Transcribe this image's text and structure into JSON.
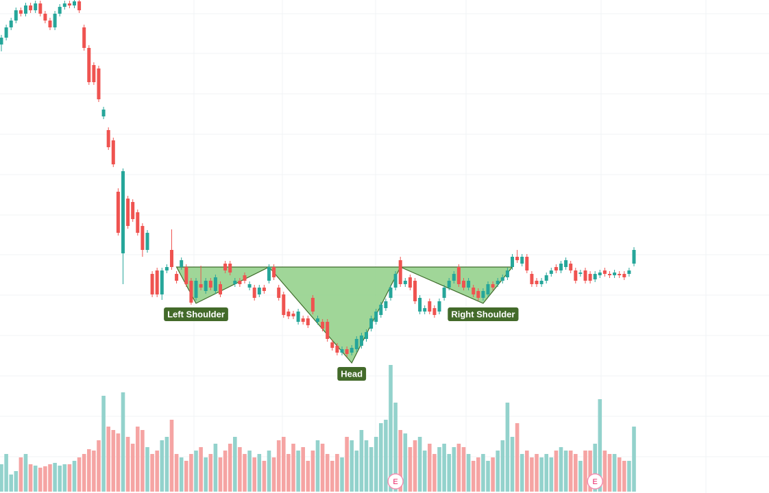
{
  "chart_data": {
    "type": "candlestick",
    "up_color": "#26a69a",
    "down_color": "#ef5350",
    "volume_up_color": "#93d2cc",
    "volume_down_color": "#f5a4a3",
    "ylim": [
      0,
      720
    ],
    "open": [
      655,
      665,
      680,
      690,
      705,
      700,
      712,
      705,
      715,
      700,
      690,
      680,
      700,
      710,
      715,
      712,
      718,
      680,
      650,
      625,
      620,
      550,
      530,
      515,
      440,
      350,
      430,
      425,
      410,
      390,
      355,
      320,
      325,
      290,
      325,
      355,
      320,
      330,
      330,
      310,
      285,
      305,
      295,
      310,
      295,
      305,
      335,
      335,
      305,
      310,
      318,
      300,
      300,
      290,
      300,
      310,
      330,
      300,
      290,
      265,
      262,
      250,
      255,
      255,
      285,
      250,
      250,
      250,
      220,
      215,
      205,
      210,
      205,
      210,
      215,
      225,
      240,
      250,
      260,
      270,
      285,
      300,
      340,
      305,
      315,
      310,
      265,
      265,
      280,
      270,
      265,
      285,
      300,
      310,
      330,
      310,
      300,
      300,
      295,
      285,
      290,
      305,
      305,
      310,
      315,
      330,
      345,
      335,
      345,
      320,
      310,
      305,
      310,
      320,
      330,
      325,
      330,
      335,
      325,
      320,
      325,
      320,
      312,
      318,
      325,
      320,
      318,
      320,
      320,
      320,
      335
    ],
    "high": [
      669,
      684,
      694,
      709,
      709,
      716,
      716,
      719,
      719,
      704,
      694,
      704,
      714,
      719,
      719,
      720,
      720,
      684,
      654,
      629,
      624,
      564,
      534,
      519,
      445,
      474,
      434,
      429,
      414,
      394,
      384,
      324,
      329,
      329,
      334,
      385,
      324,
      344,
      334,
      314,
      314,
      332,
      314,
      314,
      319,
      309,
      339,
      339,
      314,
      314,
      322,
      309,
      304,
      304,
      304,
      334,
      334,
      304,
      294,
      269,
      266,
      269,
      259,
      259,
      289,
      259,
      254,
      254,
      224,
      219,
      214,
      214,
      216,
      229,
      234,
      239,
      259,
      269,
      279,
      284,
      304,
      324,
      345,
      314,
      319,
      314,
      289,
      274,
      284,
      274,
      284,
      304,
      314,
      324,
      334,
      314,
      314,
      304,
      299,
      299,
      309,
      309,
      314,
      319,
      329,
      349,
      355,
      349,
      349,
      324,
      314,
      314,
      322,
      329,
      334,
      339,
      344,
      339,
      329,
      326,
      329,
      324,
      324,
      326,
      329,
      324,
      326,
      324,
      324,
      329,
      359
    ],
    "low": [
      645,
      661,
      676,
      686,
      696,
      696,
      701,
      701,
      696,
      686,
      676,
      676,
      696,
      706,
      708,
      708,
      701,
      646,
      596,
      596,
      571,
      546,
      501,
      476,
      376,
      305,
      386,
      396,
      376,
      345,
      351,
      286,
      286,
      282,
      321,
      326,
      306,
      326,
      301,
      275,
      281,
      296,
      291,
      296,
      291,
      286,
      321,
      318,
      301,
      301,
      306,
      296,
      281,
      286,
      291,
      306,
      311,
      281,
      256,
      254,
      254,
      246,
      246,
      241,
      261,
      246,
      236,
      221,
      208,
      201,
      201,
      199,
      201,
      206,
      211,
      221,
      236,
      246,
      256,
      266,
      281,
      296,
      301,
      301,
      296,
      276,
      261,
      261,
      261,
      256,
      261,
      281,
      296,
      306,
      301,
      296,
      296,
      286,
      281,
      281,
      286,
      296,
      301,
      306,
      311,
      326,
      336,
      331,
      321,
      301,
      301,
      301,
      306,
      316,
      321,
      321,
      326,
      321,
      306,
      316,
      306,
      306,
      308,
      314,
      316,
      314,
      314,
      314,
      311,
      316,
      331
    ],
    "close": [
      665,
      680,
      690,
      705,
      700,
      712,
      705,
      715,
      700,
      690,
      680,
      700,
      710,
      715,
      712,
      718,
      705,
      650,
      600,
      600,
      575,
      560,
      505,
      480,
      380,
      470,
      390,
      400,
      380,
      355,
      380,
      290,
      290,
      325,
      330,
      330,
      310,
      340,
      305,
      278,
      310,
      300,
      310,
      300,
      315,
      290,
      325,
      322,
      310,
      305,
      310,
      305,
      285,
      300,
      295,
      330,
      315,
      285,
      260,
      258,
      258,
      265,
      250,
      245,
      265,
      255,
      240,
      225,
      212,
      205,
      210,
      203,
      212,
      225,
      230,
      235,
      255,
      265,
      275,
      280,
      300,
      320,
      305,
      310,
      300,
      280,
      285,
      270,
      265,
      260,
      280,
      300,
      310,
      320,
      305,
      300,
      310,
      290,
      285,
      295,
      305,
      300,
      310,
      315,
      325,
      345,
      340,
      345,
      325,
      305,
      305,
      310,
      318,
      325,
      325,
      335,
      340,
      325,
      310,
      322,
      310,
      310,
      320,
      322,
      320,
      318,
      322,
      318,
      315,
      325,
      355
    ],
    "volume": [
      40,
      55,
      25,
      30,
      50,
      55,
      40,
      38,
      35,
      37,
      40,
      42,
      38,
      40,
      40,
      45,
      50,
      55,
      62,
      60,
      75,
      140,
      95,
      90,
      85,
      145,
      80,
      70,
      95,
      90,
      65,
      55,
      60,
      75,
      80,
      105,
      55,
      50,
      45,
      55,
      60,
      65,
      50,
      55,
      70,
      50,
      60,
      70,
      80,
      65,
      55,
      60,
      50,
      55,
      45,
      60,
      50,
      75,
      80,
      55,
      70,
      60,
      65,
      45,
      60,
      75,
      70,
      55,
      45,
      55,
      50,
      80,
      75,
      60,
      90,
      75,
      65,
      80,
      100,
      105,
      185,
      130,
      90,
      85,
      65,
      75,
      80,
      60,
      70,
      55,
      65,
      70,
      55,
      65,
      70,
      65,
      55,
      45,
      50,
      55,
      45,
      50,
      60,
      75,
      130,
      80,
      100,
      55,
      60,
      50,
      55,
      50,
      55,
      50,
      60,
      65,
      60,
      60,
      55,
      45,
      60,
      60,
      70,
      135,
      60,
      55,
      55,
      50,
      45,
      45,
      95
    ],
    "patterns": [
      {
        "label": "Left Shoulder",
        "points": [
          [
            36,
            330
          ],
          [
            40,
            277
          ],
          [
            55,
            330
          ]
        ]
      },
      {
        "label": "Head",
        "points": [
          [
            55,
            330
          ],
          [
            72,
            190
          ],
          [
            82,
            330
          ]
        ]
      },
      {
        "label": "Right Shoulder",
        "points": [
          [
            82,
            330
          ],
          [
            99,
            277
          ],
          [
            105,
            330
          ]
        ]
      }
    ],
    "pattern_color": "#8fcf86",
    "label_color": "#436a2a",
    "events": [
      {
        "label": "E",
        "index": 81
      },
      {
        "label": "E",
        "index": 122
      }
    ]
  }
}
